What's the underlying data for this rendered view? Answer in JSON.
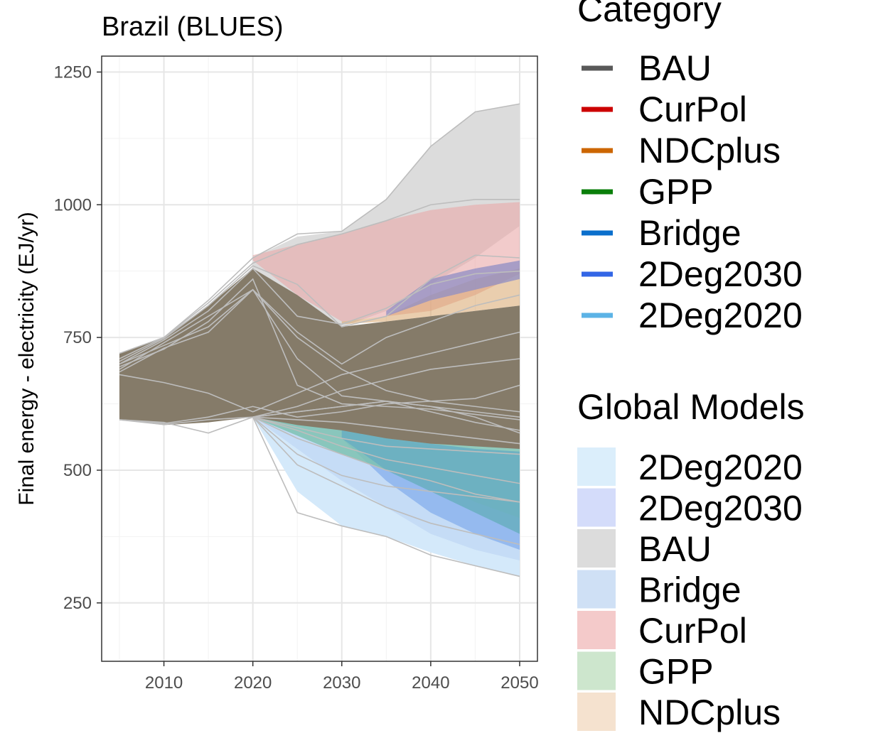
{
  "chart_data": {
    "type": "area",
    "title": "Brazil (BLUES)",
    "xlabel": "",
    "ylabel": "Final energy - electricity (EJ/yr)",
    "xlim": [
      2003,
      2052
    ],
    "ylim": [
      140,
      1280
    ],
    "x_ticks": [
      2010,
      2020,
      2030,
      2040,
      2050
    ],
    "y_ticks": [
      250,
      500,
      750,
      1000,
      1250
    ],
    "grid": true,
    "category_legend": {
      "title": "Category",
      "entries": [
        {
          "label": "BAU",
          "color": "#595959"
        },
        {
          "label": "CurPol",
          "color": "#cc0000"
        },
        {
          "label": "NDCplus",
          "color": "#cc6600"
        },
        {
          "label": "GPP",
          "color": "#0a7f0a"
        },
        {
          "label": "Bridge",
          "color": "#0a6fcc"
        },
        {
          "label": "2Deg2030",
          "color": "#3366e6"
        },
        {
          "label": "2Deg2020",
          "color": "#5cb3e6"
        }
      ]
    },
    "global_models_legend": {
      "title": "Global Models",
      "entries": [
        {
          "label": "2Deg2020",
          "color": "#dbeefb"
        },
        {
          "label": "2Deg2030",
          "color": "#d4dcfa"
        },
        {
          "label": "BAU",
          "color": "#dcdcdc"
        },
        {
          "label": "Bridge",
          "color": "#cfe0f5"
        },
        {
          "label": "CurPol",
          "color": "#f4caca"
        },
        {
          "label": "GPP",
          "color": "#cde6cd"
        },
        {
          "label": "NDCplus",
          "color": "#f5e2cf"
        }
      ]
    },
    "bands": [
      {
        "name": "BAU",
        "color": "#dcdcdc",
        "opacity": 1,
        "x": [
          2020,
          2025,
          2030,
          2035,
          2040,
          2045,
          2050
        ],
        "low": [
          600,
          700,
          770,
          800,
          850,
          900,
          960
        ],
        "high": [
          900,
          940,
          950,
          1010,
          1110,
          1175,
          1190
        ]
      },
      {
        "name": "CurPol",
        "color": "#e9a9a9",
        "opacity": 0.6,
        "x": [
          2020,
          2025,
          2030,
          2035,
          2040,
          2045,
          2050
        ],
        "low": [
          895,
          830,
          780,
          790,
          800,
          830,
          870
        ],
        "high": [
          905,
          925,
          945,
          970,
          990,
          1000,
          1005
        ]
      },
      {
        "name": "NDCplus",
        "color": "#d9a66c",
        "opacity": 0.55,
        "x": [
          2030,
          2035,
          2040,
          2045,
          2050
        ],
        "low": [
          775,
          780,
          790,
          800,
          810
        ],
        "high": [
          780,
          790,
          830,
          860,
          880
        ]
      },
      {
        "name": "2Deg2030",
        "color": "#8f8ec4",
        "opacity": 0.75,
        "x": [
          2035,
          2040,
          2045,
          2050
        ],
        "low": [
          790,
          820,
          840,
          860
        ],
        "high": [
          800,
          860,
          880,
          895
        ]
      },
      {
        "name": "2Deg2020",
        "color": "#d4e9fa",
        "opacity": 1,
        "x": [
          2020,
          2025,
          2030,
          2035,
          2040,
          2045,
          2050
        ],
        "low": [
          600,
          460,
          395,
          375,
          345,
          320,
          300
        ],
        "high": [
          600,
          590,
          580,
          560,
          545,
          540,
          535
        ]
      },
      {
        "name": "Bridge",
        "color": "#c4dbf5",
        "opacity": 0.95,
        "x": [
          2020,
          2025,
          2030,
          2035,
          2040,
          2045,
          2050
        ],
        "low": [
          600,
          540,
          480,
          430,
          380,
          350,
          330
        ],
        "high": [
          600,
          590,
          580,
          560,
          545,
          535,
          530
        ]
      },
      {
        "name": "2Deg2030",
        "color": "#8fb6ee",
        "opacity": 0.9,
        "x": [
          2030,
          2035,
          2040,
          2045,
          2050
        ],
        "low": [
          560,
          480,
          420,
          380,
          350
        ],
        "high": [
          580,
          560,
          545,
          535,
          530
        ]
      },
      {
        "name": "GPP",
        "color": "#7ec2b2",
        "opacity": 0.85,
        "x": [
          2020,
          2025,
          2030,
          2035,
          2040,
          2045,
          2050
        ],
        "low": [
          600,
          565,
          530,
          500,
          480,
          440,
          410
        ],
        "high": [
          605,
          595,
          585,
          570,
          560,
          550,
          545
        ]
      },
      {
        "name": "GPP",
        "color": "#6aafc2",
        "opacity": 0.9,
        "x": [
          2030,
          2035,
          2040,
          2045,
          2050
        ],
        "low": [
          560,
          500,
          460,
          420,
          380
        ],
        "high": [
          575,
          560,
          550,
          540,
          535
        ]
      },
      {
        "name": "BAU",
        "color": "#857b69",
        "opacity": 1,
        "x": [
          2005,
          2010,
          2015,
          2020,
          2025,
          2030,
          2035,
          2040,
          2045,
          2050
        ],
        "low": [
          595,
          585,
          590,
          600,
          585,
          575,
          560,
          550,
          545,
          540
        ],
        "high": [
          720,
          750,
          810,
          880,
          830,
          770,
          780,
          790,
          800,
          810
        ]
      }
    ],
    "series": [
      {
        "x": [
          2005,
          2010,
          2015,
          2020,
          2025,
          2030,
          2035,
          2040,
          2045,
          2050
        ],
        "values": [
          720,
          750,
          820,
          900,
          945,
          950,
          1010,
          1110,
          1175,
          1190
        ]
      },
      {
        "x": [
          2005,
          2010,
          2015,
          2020,
          2025,
          2030,
          2035,
          2040,
          2045,
          2050
        ],
        "values": [
          710,
          750,
          815,
          890,
          925,
          945,
          970,
          1000,
          1010,
          1010
        ]
      },
      {
        "x": [
          2005,
          2010,
          2015,
          2020,
          2025,
          2030,
          2035,
          2040,
          2045,
          2050
        ],
        "values": [
          705,
          748,
          810,
          885,
          850,
          770,
          790,
          860,
          905,
          900
        ]
      },
      {
        "x": [
          2005,
          2010,
          2015,
          2020,
          2025,
          2030,
          2035,
          2040,
          2045,
          2050
        ],
        "values": [
          700,
          745,
          800,
          880,
          790,
          775,
          805,
          850,
          870,
          875
        ]
      },
      {
        "x": [
          2005,
          2010,
          2015,
          2020,
          2025,
          2030,
          2035,
          2040,
          2045,
          2050
        ],
        "values": [
          690,
          740,
          790,
          840,
          760,
          700,
          750,
          780,
          810,
          830
        ]
      },
      {
        "x": [
          2005,
          2010,
          2015,
          2020,
          2025,
          2030,
          2035,
          2040,
          2045,
          2050
        ],
        "values": [
          680,
          665,
          645,
          610,
          645,
          680,
          700,
          720,
          740,
          760
        ]
      },
      {
        "x": [
          2005,
          2010,
          2015,
          2020,
          2025,
          2030,
          2035,
          2040,
          2045,
          2050
        ],
        "values": [
          685,
          730,
          760,
          840,
          750,
          690,
          650,
          630,
          620,
          610
        ]
      },
      {
        "x": [
          2005,
          2010,
          2015,
          2020,
          2025,
          2030,
          2035,
          2040,
          2045,
          2050
        ],
        "values": [
          700,
          735,
          770,
          840,
          710,
          640,
          630,
          620,
          610,
          600
        ]
      },
      {
        "x": [
          2005,
          2010,
          2015,
          2020,
          2025,
          2030,
          2035,
          2040,
          2045,
          2050
        ],
        "values": [
          695,
          728,
          780,
          860,
          660,
          625,
          620,
          615,
          605,
          595
        ]
      },
      {
        "x": [
          2005,
          2010,
          2015,
          2020,
          2025,
          2030,
          2035,
          2040,
          2045,
          2050
        ],
        "values": [
          595,
          590,
          570,
          600,
          610,
          620,
          630,
          610,
          590,
          575
        ]
      },
      {
        "x": [
          2005,
          2010,
          2015,
          2020,
          2025,
          2030,
          2035,
          2040,
          2045,
          2050
        ],
        "values": [
          595,
          588,
          600,
          620,
          600,
          610,
          625,
          630,
          635,
          660
        ]
      },
      {
        "x": [
          2005,
          2010,
          2015,
          2020,
          2025,
          2030,
          2035,
          2040,
          2045,
          2050
        ],
        "values": [
          595,
          586,
          595,
          600,
          620,
          650,
          670,
          690,
          700,
          710
        ]
      },
      {
        "x": [
          2020,
          2025,
          2030,
          2035,
          2040,
          2045,
          2050
        ],
        "values": [
          600,
          580,
          560,
          545,
          540,
          535,
          530
        ]
      },
      {
        "x": [
          2020,
          2025,
          2030,
          2035,
          2040,
          2045,
          2050
        ],
        "values": [
          600,
          530,
          490,
          470,
          460,
          450,
          440
        ]
      },
      {
        "x": [
          2020,
          2025,
          2030,
          2035,
          2040,
          2045,
          2050
        ],
        "values": [
          600,
          510,
          470,
          430,
          400,
          380,
          360
        ]
      },
      {
        "x": [
          2020,
          2025,
          2030,
          2035,
          2040,
          2045,
          2050
        ],
        "values": [
          600,
          420,
          395,
          375,
          340,
          320,
          300
        ]
      },
      {
        "x": [
          2020,
          2025,
          2030,
          2035,
          2040,
          2045,
          2050
        ],
        "values": [
          600,
          560,
          530,
          500,
          480,
          455,
          440
        ]
      },
      {
        "x": [
          2020,
          2025,
          2030,
          2035,
          2040,
          2045,
          2050
        ],
        "values": [
          600,
          610,
          620,
          630,
          620,
          600,
          570
        ]
      },
      {
        "x": [
          2020,
          2025,
          2030,
          2035,
          2040,
          2045,
          2050
        ],
        "values": [
          600,
          575,
          545,
          520,
          505,
          490,
          475
        ]
      },
      {
        "x": [
          2020,
          2025,
          2030,
          2035,
          2040,
          2045,
          2050
        ],
        "values": [
          600,
          595,
          590,
          580,
          570,
          560,
          550
        ]
      }
    ]
  }
}
